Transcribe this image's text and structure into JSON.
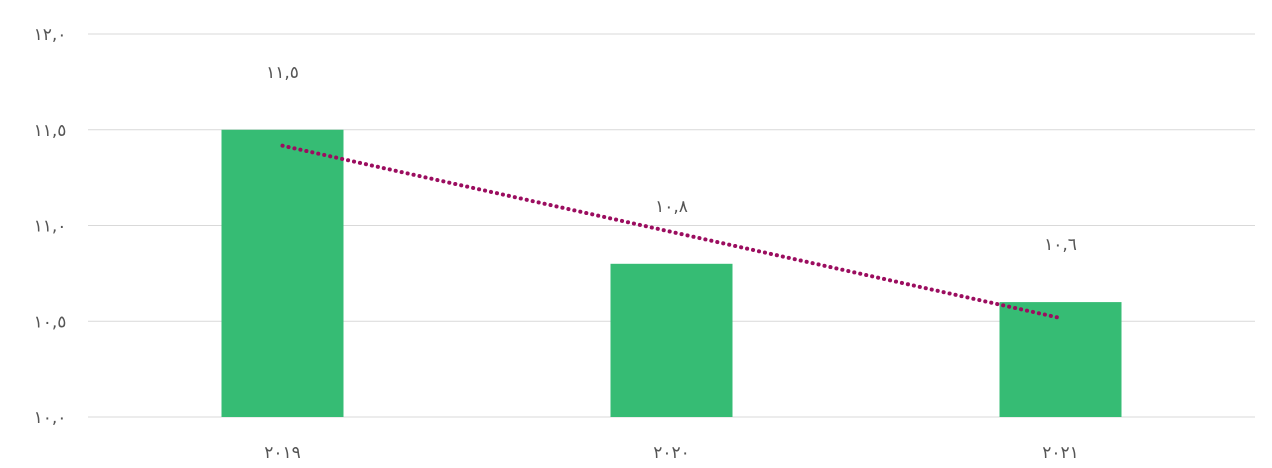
{
  "chart_data": {
    "type": "bar",
    "categories": [
      "٢٠١٩",
      "٢٠٢٠",
      "٢٠٢١"
    ],
    "values": [
      11.5,
      10.8,
      10.6
    ],
    "data_labels": [
      "١١,٥",
      "١٠,٨",
      "١٠,٦"
    ],
    "y_ticks": [
      {
        "value": 10.0,
        "label": "١٠,٠"
      },
      {
        "value": 10.5,
        "label": "١٠,٥"
      },
      {
        "value": 11.0,
        "label": "١١,٠"
      },
      {
        "value": 11.5,
        "label": "١١,٥"
      },
      {
        "value": 12.0,
        "label": "١٢,٠"
      }
    ],
    "ylim": [
      10.0,
      12.0
    ],
    "grid": true,
    "trendline": {
      "type": "linear",
      "style": "dotted",
      "color": "#9b0d5f"
    },
    "bar_color": "#36bc74"
  }
}
